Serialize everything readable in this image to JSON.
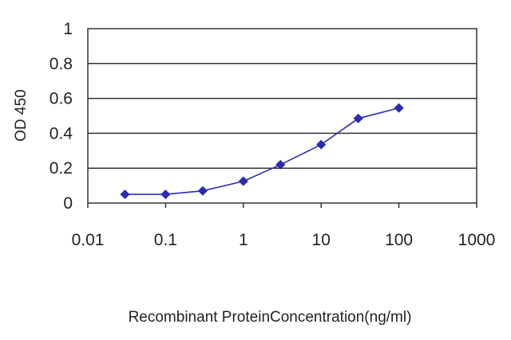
{
  "chart_data": {
    "type": "line",
    "title": "",
    "xlabel": "Recombinant ProteinConcentration(ng/ml)",
    "ylabel": "OD 450",
    "x_scale": "log",
    "xlim": [
      0.01,
      1000
    ],
    "ylim": [
      0,
      1
    ],
    "x_ticks": [
      "0.01",
      "0.1",
      "1",
      "10",
      "100",
      "1000"
    ],
    "y_ticks": [
      "0",
      "0.2",
      "0.4",
      "0.6",
      "0.8",
      "1"
    ],
    "grid": "horizontal",
    "legend": "none",
    "series": [
      {
        "color": "#2b2bb0",
        "marker": "diamond",
        "x": [
          0.03,
          0.1,
          0.3,
          1,
          3,
          10,
          30,
          100
        ],
        "y": [
          0.05,
          0.05,
          0.07,
          0.125,
          0.22,
          0.335,
          0.485,
          0.545
        ]
      }
    ]
  }
}
